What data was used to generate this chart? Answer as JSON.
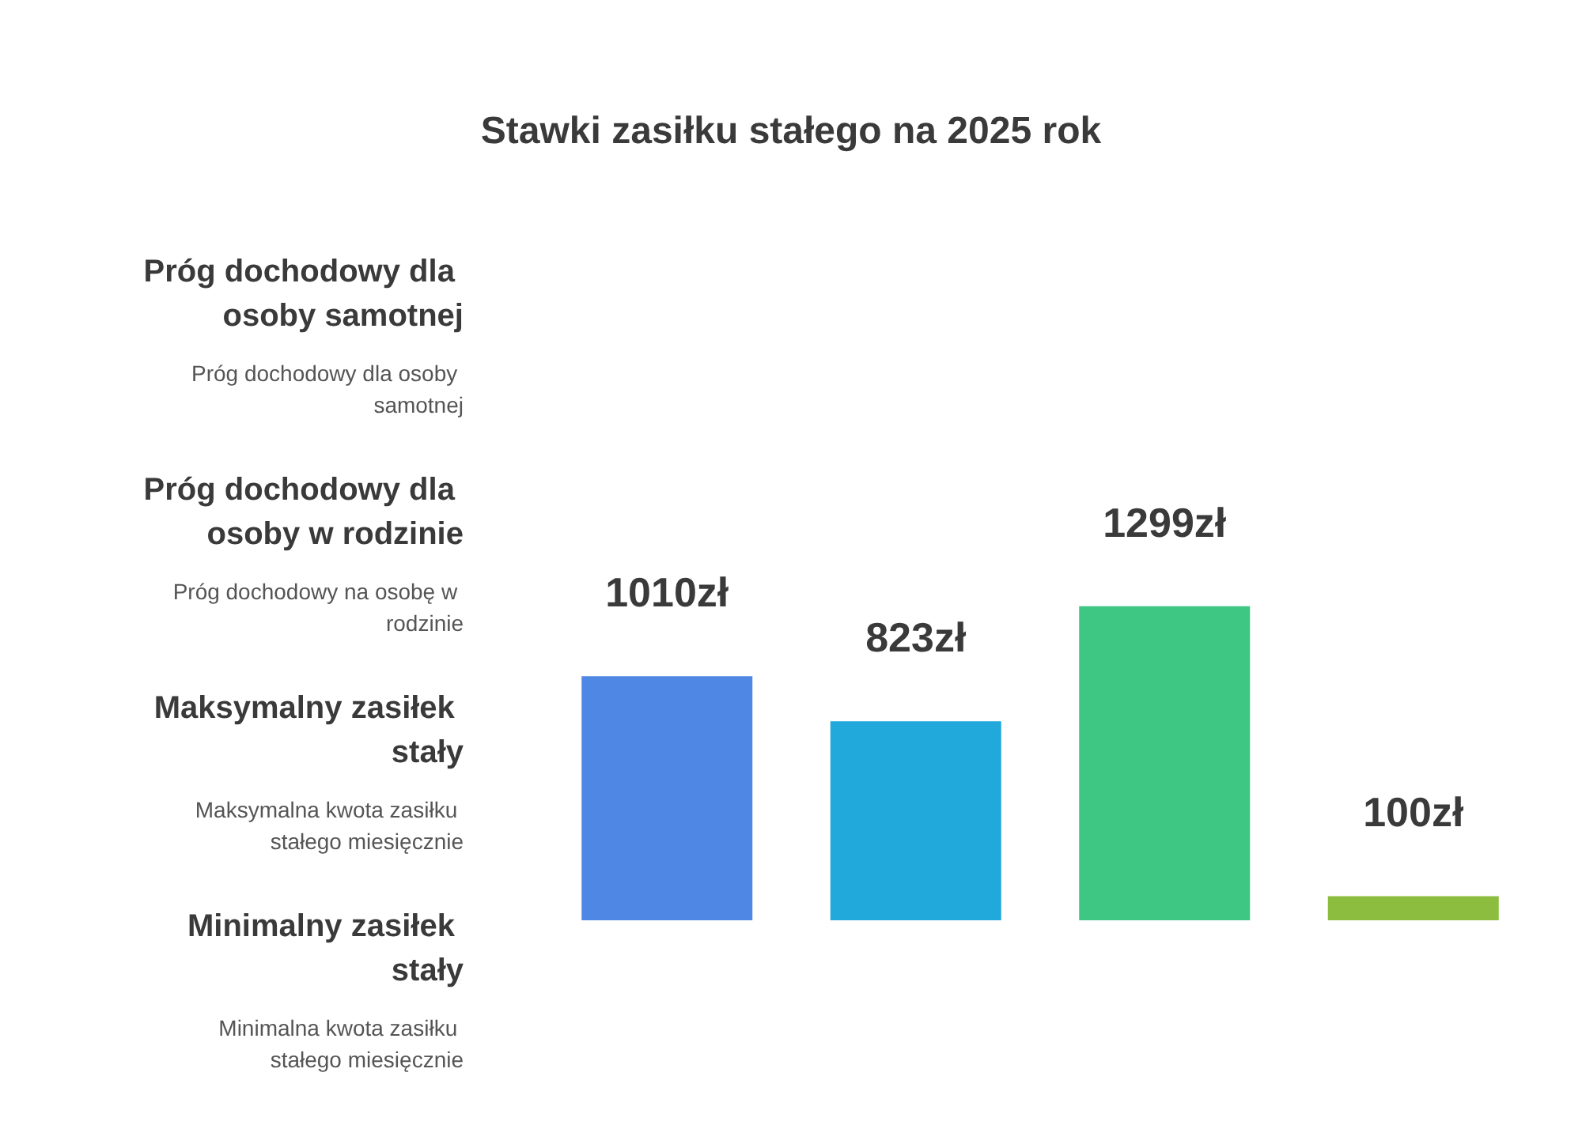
{
  "chart_data": {
    "type": "bar",
    "title": "Stawki zasiłku stałego na 2025 rok",
    "categories": [
      null,
      null,
      null,
      null
    ],
    "values": [
      1010,
      823,
      1299,
      100
    ],
    "colors": [
      "#4f87e5",
      "#21a9dc",
      "#3ec683",
      "#8cbd3e"
    ],
    "value_labels": [
      "1010zł",
      "823zł",
      "1299zł",
      "100zł"
    ],
    "annotations": [
      "Próg dochodowy dla osoby samotnej",
      "Próg dochodowy dla osoby samotnej",
      "Próg dochodowy dla osoby w rodzinie",
      "Próg dochodowy na osobę w rodzinie",
      "Maksymalny zasiłek stały",
      "Maksymalna kwota zasiłku stałego miesięcznie",
      "Minimalny zasiłek stały",
      "Minimalna kwota zasiłku stałego miesięcznie"
    ]
  }
}
